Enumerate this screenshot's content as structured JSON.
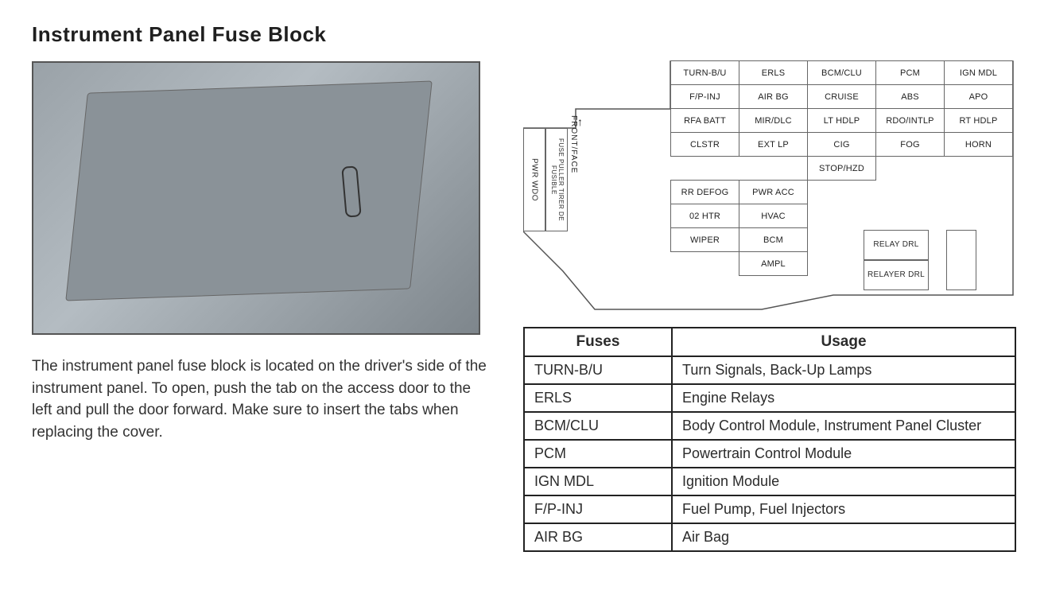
{
  "title": "Instrument Panel Fuse Block",
  "description": "The instrument panel fuse block is located on the driver's side of the instrument panel. To open, push the tab on the access door to the left and pull the door forward. Make sure to insert the tabs when replacing the cover.",
  "diagram": {
    "side": {
      "pwr_wdo": "PWR WDO",
      "fuse_puller": "FUSE PULLER\nTIRER DE FUSIBLE",
      "front": "FRONT/FACE"
    },
    "rows": [
      [
        "TURN-B/U",
        "ERLS",
        "BCM/CLU",
        "PCM",
        "IGN MDL"
      ],
      [
        "F/P-INJ",
        "AIR BG",
        "CRUISE",
        "ABS",
        "APO"
      ],
      [
        "RFA BATT",
        "MIR/DLC",
        "LT HDLP",
        "RDO/INTLP",
        "RT HDLP"
      ],
      [
        "CLSTR",
        "EXT LP",
        "CIG",
        "FOG",
        "HORN"
      ],
      [
        "",
        "",
        "STOP/HZD",
        "",
        ""
      ],
      [
        "RR DEFOG",
        "PWR ACC",
        "",
        "",
        ""
      ],
      [
        "02 HTR",
        "HVAC",
        "",
        "",
        ""
      ],
      [
        "WIPER",
        "BCM",
        "",
        "",
        ""
      ],
      [
        "",
        "AMPL",
        "",
        "",
        ""
      ]
    ],
    "relay1": "RELAY\nDRL",
    "relay2": "RELAYER\nDRL"
  },
  "usage_table": {
    "headers": [
      "Fuses",
      "Usage"
    ],
    "rows": [
      [
        "TURN-B/U",
        "Turn Signals, Back-Up Lamps"
      ],
      [
        "ERLS",
        "Engine Relays"
      ],
      [
        "BCM/CLU",
        "Body Control Module, Instrument Panel Cluster"
      ],
      [
        "PCM",
        "Powertrain Control Module"
      ],
      [
        "IGN MDL",
        "Ignition Module"
      ],
      [
        "F/P-INJ",
        "Fuel Pump, Fuel Injectors"
      ],
      [
        "AIR BG",
        "Air Bag"
      ]
    ]
  }
}
